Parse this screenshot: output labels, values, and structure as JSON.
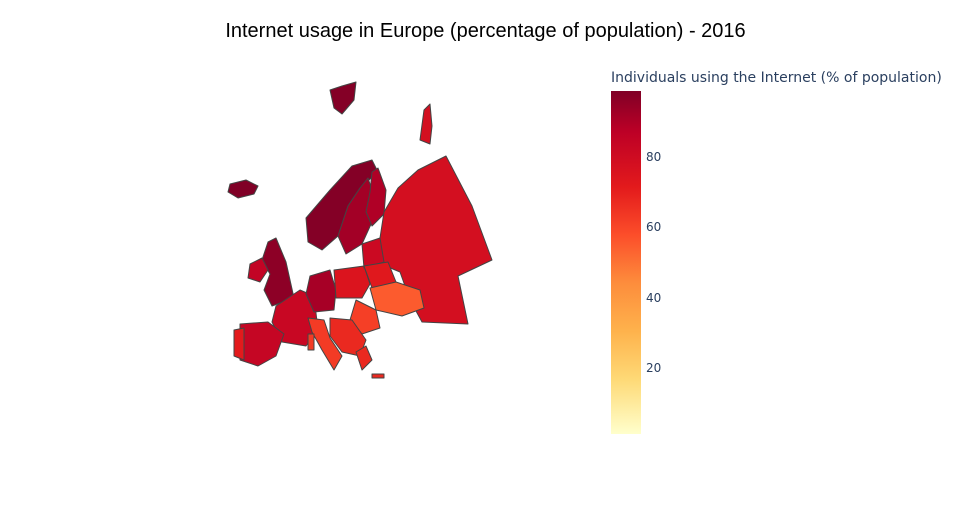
{
  "title": "Internet usage in Europe (percentage of population) - 2016",
  "colorbar": {
    "title": "Individuals using the Internet (% of population)",
    "ticks": [
      "80",
      "60",
      "40",
      "20"
    ],
    "range": [
      0,
      98
    ],
    "colors": [
      "#ffffcc",
      "#fed976",
      "#feb24c",
      "#fd8d3c",
      "#fc4e2a",
      "#e31a1c",
      "#bd0026",
      "#800026"
    ]
  },
  "map": {
    "type": "choropleth",
    "scope": "europe",
    "regions": [
      {
        "name": "iceland",
        "value": 98
      },
      {
        "name": "norway",
        "value": 97
      },
      {
        "name": "sweden",
        "value": 90
      },
      {
        "name": "finland",
        "value": 87
      },
      {
        "name": "russia",
        "value": 76
      },
      {
        "name": "united-kingdom",
        "value": 95
      },
      {
        "name": "ireland",
        "value": 82
      },
      {
        "name": "france",
        "value": 80
      },
      {
        "name": "spain",
        "value": 81
      },
      {
        "name": "portugal",
        "value": 70
      },
      {
        "name": "germany",
        "value": 89
      },
      {
        "name": "poland",
        "value": 73
      },
      {
        "name": "ukraine",
        "value": 53
      },
      {
        "name": "italy",
        "value": 61
      },
      {
        "name": "balkans",
        "value": 66
      },
      {
        "name": "romania",
        "value": 60
      },
      {
        "name": "baltics",
        "value": 79
      },
      {
        "name": "belarus",
        "value": 71
      }
    ]
  }
}
